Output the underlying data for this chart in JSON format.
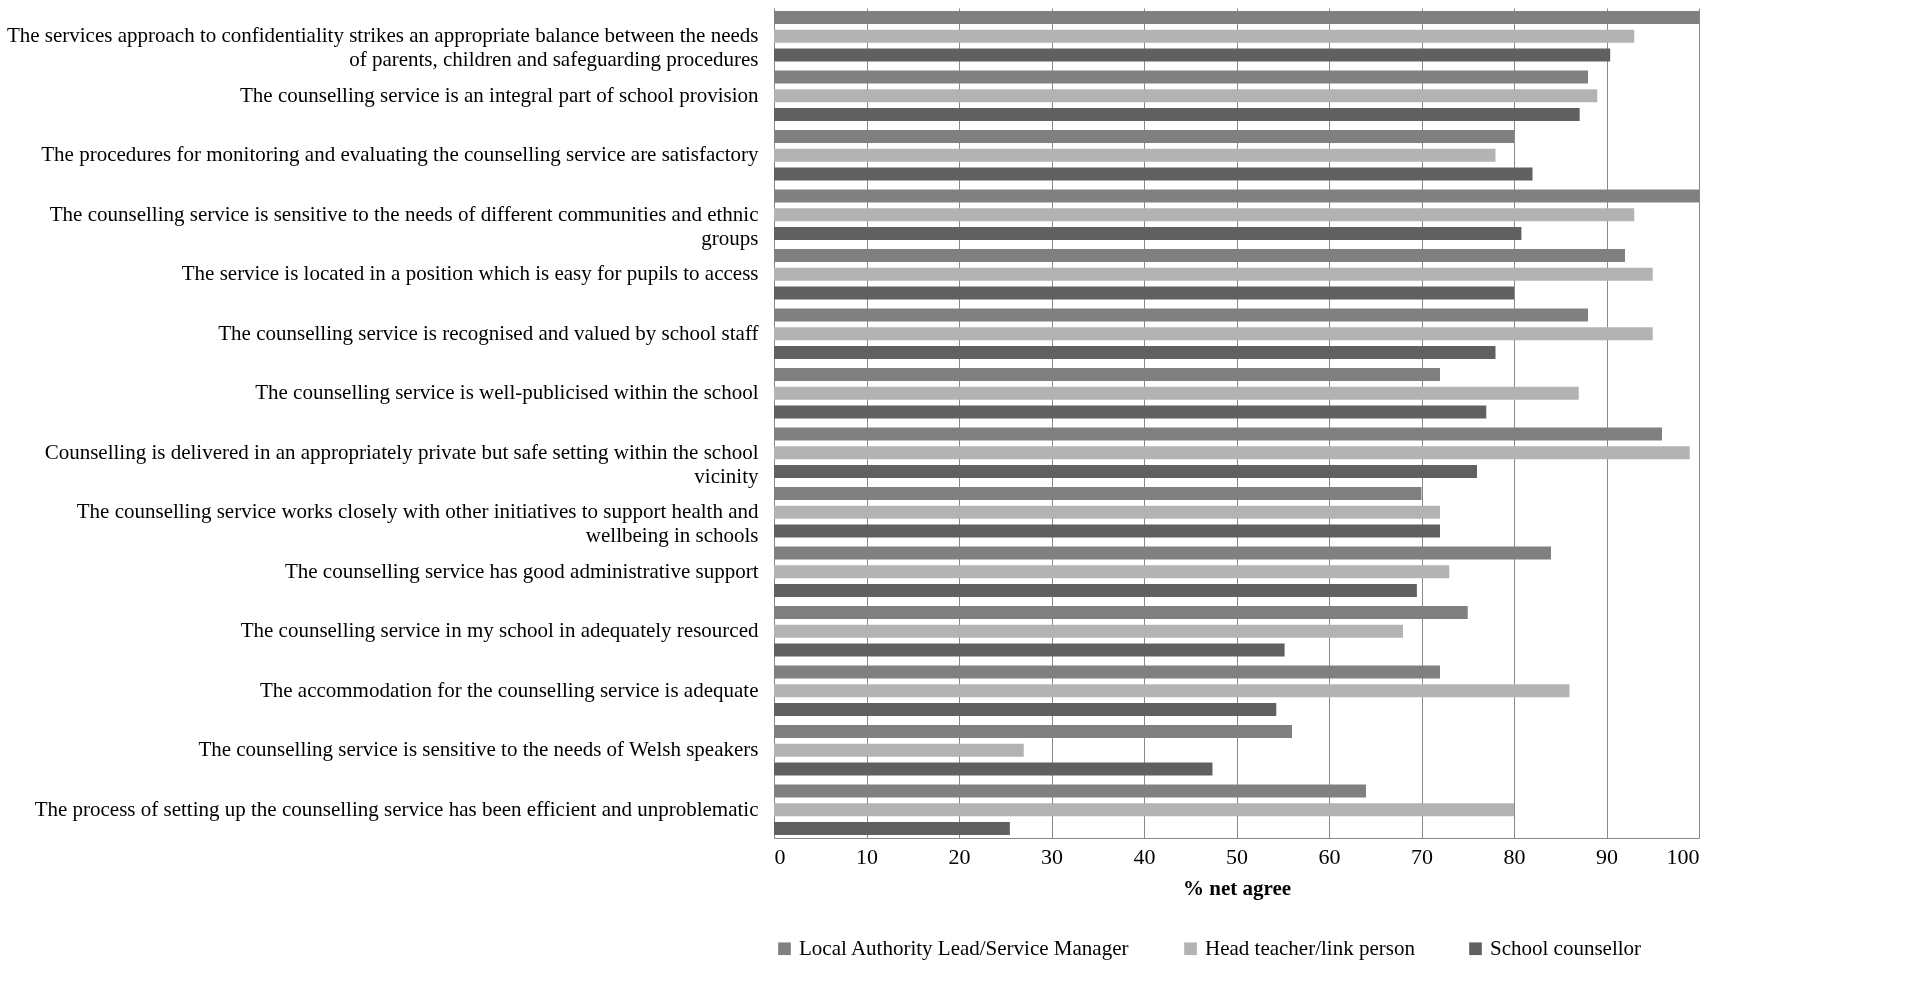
{
  "chart_data": {
    "type": "bar",
    "orientation": "horizontal",
    "xlabel": "% net agree",
    "categories": [
      "The services approach to confidentiality strikes an appropriate balance between the needs of parents, children and safeguarding procedures",
      "The counselling service is an integral part of school provision",
      "The procedures for monitoring and evaluating the counselling service are satisfactory",
      "The counselling service is sensitive to the needs of different communities and ethnic groups",
      "The service is located in a position which is easy for pupils to access",
      "The counselling service is recognised and valued by school staff",
      "The counselling service is well-publicised within the school",
      "Counselling is delivered in an appropriately private but safe setting within the school vicinity",
      "The counselling service works closely with other initiatives to support health and wellbeing in schools",
      "The counselling service has good administrative support",
      "The counselling service in my school in adequately resourced",
      "The accommodation for the counselling service is adequate",
      "The counselling service is sensitive to the needs of Welsh speakers",
      "The process of setting up the counselling service has been efficient and unproblematic"
    ],
    "series": [
      {
        "name": "Local Authority Lead/Service Manager",
        "color": "#808080",
        "values": [
          100,
          88,
          80,
          100,
          92,
          88,
          72,
          96,
          70,
          84,
          75,
          72,
          56,
          64
        ]
      },
      {
        "name": "Head teacher/link person",
        "color": "#b3b3b3",
        "values": [
          93,
          89,
          78,
          93,
          95,
          95,
          87,
          99,
          72,
          73,
          68,
          86,
          27,
          80
        ]
      },
      {
        "name": "School counsellor",
        "color": "#606060",
        "values": [
          90.4,
          87.1,
          82,
          80.8,
          80,
          78,
          77,
          76,
          72,
          69.5,
          55.2,
          54.3,
          47.4,
          25.5
        ]
      }
    ],
    "xlim": [
      0,
      100
    ],
    "xticks": [
      0,
      10,
      20,
      30,
      40,
      50,
      60,
      70,
      80,
      90,
      100
    ],
    "grid": "x",
    "legend": "bottom"
  }
}
